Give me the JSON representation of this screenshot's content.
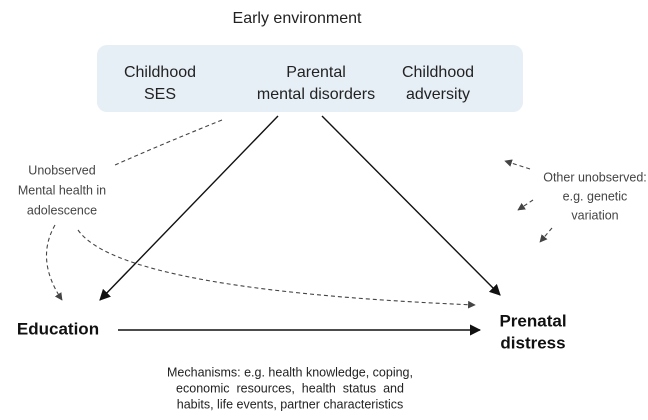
{
  "title": "Early environment",
  "nodes": [
    {
      "lines": [
        "Childhood",
        "SES"
      ]
    },
    {
      "lines": [
        "Parental",
        "mental disorders"
      ]
    },
    {
      "lines": [
        "Childhood",
        "adversity"
      ]
    },
    {
      "lines": [
        "Unobserved",
        "Mental health in",
        "adolescence"
      ]
    },
    {
      "lines": [
        "Other unobserved:",
        "e.g. genetic",
        "variation"
      ]
    },
    {
      "lines": [
        "Education"
      ]
    },
    {
      "lines": [
        "Prenatal",
        "distress"
      ]
    }
  ],
  "mechanisms": [
    "Mechanisms: e.g. health knowledge, coping,",
    "economic  resources,  health  status  and",
    "habits, life events, partner characteristics"
  ]
}
